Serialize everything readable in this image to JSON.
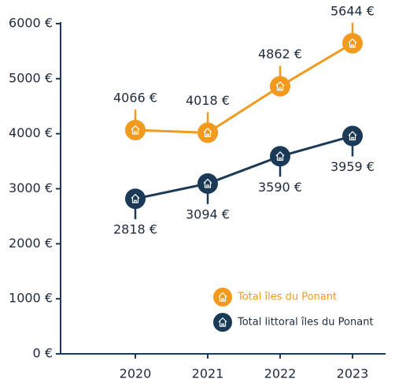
{
  "chart_data": {
    "type": "line",
    "categories": [
      "2020",
      "2021",
      "2022",
      "2023"
    ],
    "series": [
      {
        "name": "Total îles du Ponant",
        "color": "#f29a1e",
        "values": [
          4066,
          4018,
          4862,
          5644
        ],
        "value_labels": [
          "4066 €",
          "4018 €",
          "4862 €",
          "5644 €"
        ],
        "label_position": "above"
      },
      {
        "name": "Total littoral îles du Ponant",
        "color": "#1b3a57",
        "values": [
          2818,
          3094,
          3590,
          3959
        ],
        "value_labels": [
          "2818 €",
          "3094 €",
          "3590 €",
          "3959 €"
        ],
        "label_position": "below"
      }
    ],
    "ylim": [
      0,
      6000
    ],
    "yticks": [
      {
        "value": 0,
        "label": "0 €"
      },
      {
        "value": 1000,
        "label": "1000 €"
      },
      {
        "value": 2000,
        "label": "2000 €"
      },
      {
        "value": 3000,
        "label": "3000 €"
      },
      {
        "value": 4000,
        "label": "4000 €"
      },
      {
        "value": 5000,
        "label": "5000 €"
      },
      {
        "value": 6000,
        "label": "6000 €"
      }
    ],
    "legend": "lower right",
    "axis_color": "#1b3a57"
  }
}
